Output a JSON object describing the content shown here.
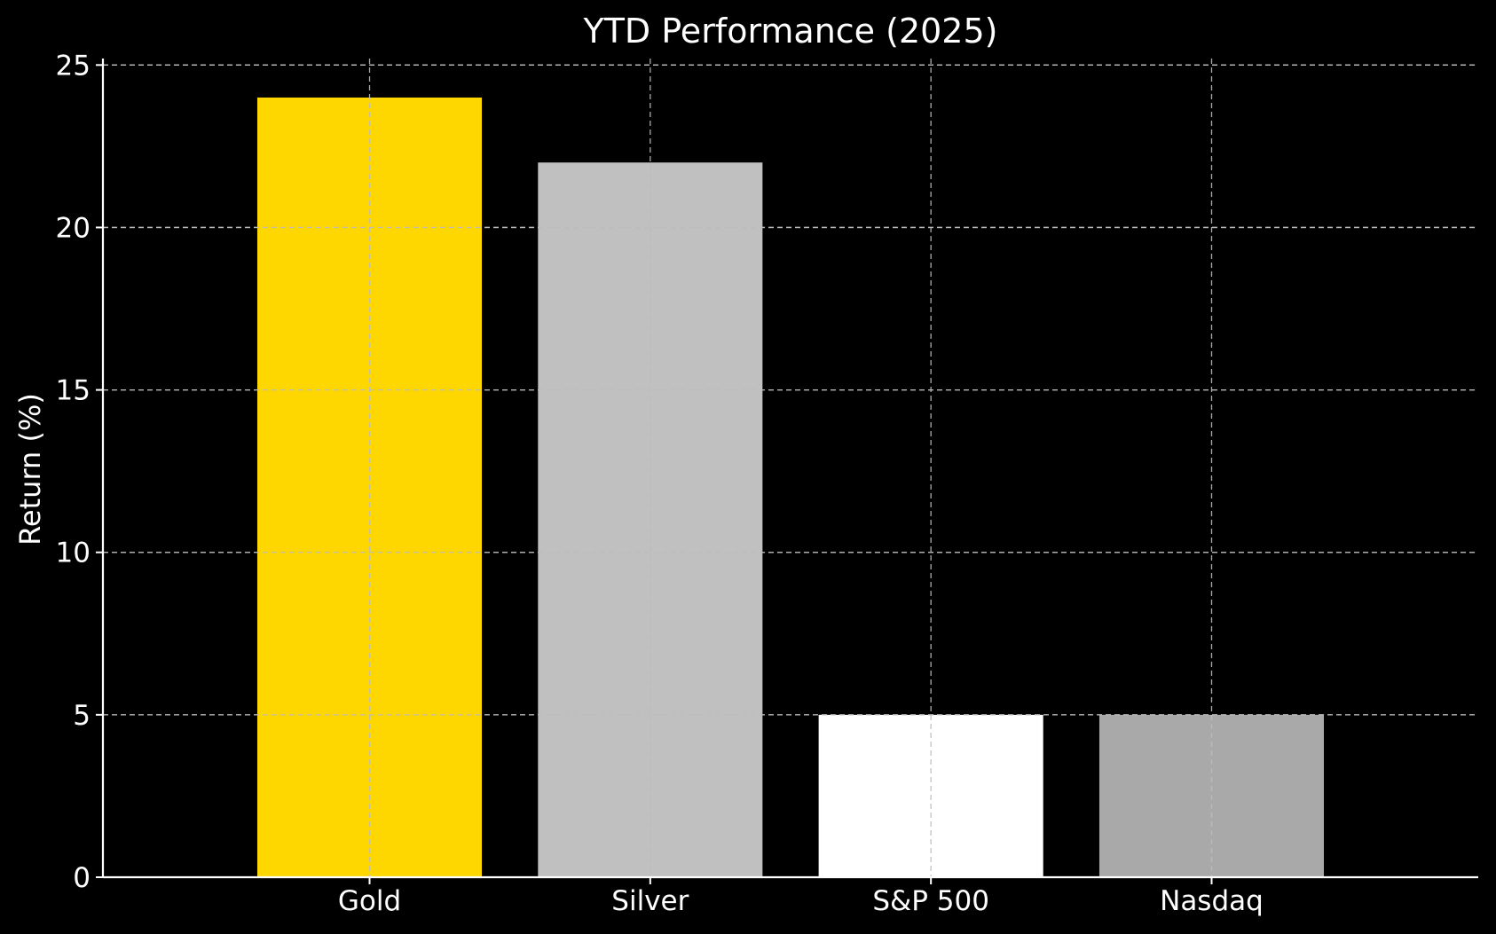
{
  "chart_data": {
    "type": "bar",
    "title": "YTD Performance (2025)",
    "xlabel": "",
    "ylabel": "Return (%)",
    "categories": [
      "Gold",
      "Silver",
      "S&P 500",
      "Nasdaq"
    ],
    "values": [
      24,
      22,
      5,
      5
    ],
    "bar_colors": [
      "#ffd700",
      "#c0c0c0",
      "#ffffff",
      "#a9a9a9"
    ],
    "ylim": [
      0,
      25.2
    ],
    "yticks": [
      0,
      5,
      10,
      15,
      20,
      25
    ],
    "grid": true,
    "legend": "none",
    "background_color": "#000000",
    "text_color": "#ffffff",
    "grid_color": "#bbbbbb"
  }
}
